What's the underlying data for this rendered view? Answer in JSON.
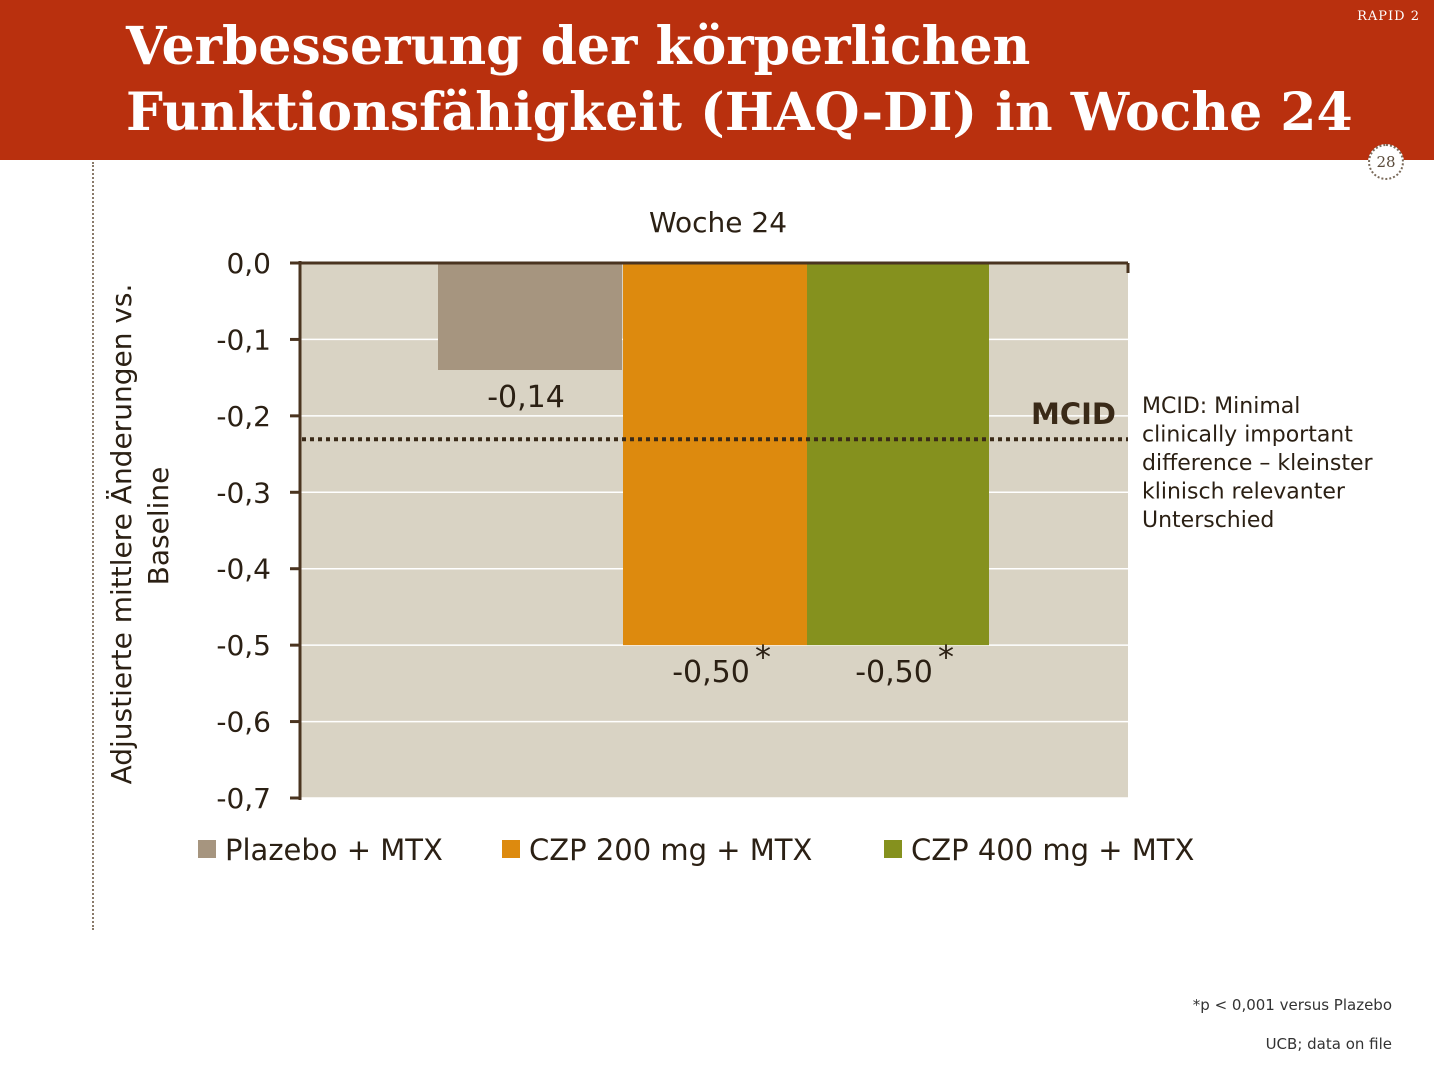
{
  "header": {
    "title_line1": "Verbesserung der körperlichen",
    "title_line2": "Funktionsfähigkeit (HAQ-DI) in Woche 24",
    "study_tag": "RAPID 2",
    "page_number": "28"
  },
  "colors": {
    "header_bg": "#b9300e",
    "plot_bg": "#d9d3c4",
    "axis": "#4a3420",
    "placebo": "#a6957f",
    "czp200": "#dd8a0e",
    "czp400": "#85911e"
  },
  "chart_data": {
    "type": "bar",
    "title": "Woche 24",
    "ylabel_line1": "Adjustierte mittlere Änderungen vs.",
    "ylabel_line2": "Baseline",
    "xlabel": "",
    "ylim": [
      -0.7,
      0.0
    ],
    "ytick_labels": [
      "0,0",
      "-0,1",
      "-0,2",
      "-0,3",
      "-0,4",
      "-0,5",
      "-0,6",
      "-0,7"
    ],
    "ytick_values": [
      0.0,
      -0.1,
      -0.2,
      -0.3,
      -0.4,
      -0.5,
      -0.6,
      -0.7
    ],
    "grid": true,
    "legend_position": "bottom",
    "series": [
      {
        "name": "Plazebo + MTX",
        "value": -0.14,
        "label": "-0,14",
        "marker": "",
        "color_key": "placebo"
      },
      {
        "name": "CZP 200 mg + MTX",
        "value": -0.5,
        "label": "-0,50",
        "marker": "*",
        "color_key": "czp200"
      },
      {
        "name": "CZP 400 mg + MTX",
        "value": -0.5,
        "label": "-0,50",
        "marker": "*",
        "color_key": "czp400"
      }
    ],
    "reference_line": {
      "label": "MCID",
      "value": -0.23,
      "style": "dotted",
      "note_lines": [
        "MCID: Minimal",
        "clinically important",
        "difference – kleinster",
        "klinisch relevanter",
        "Unterschied"
      ]
    }
  },
  "footnotes": {
    "significance": "*p < 0,001 versus Plazebo",
    "source": "UCB; data on file"
  }
}
